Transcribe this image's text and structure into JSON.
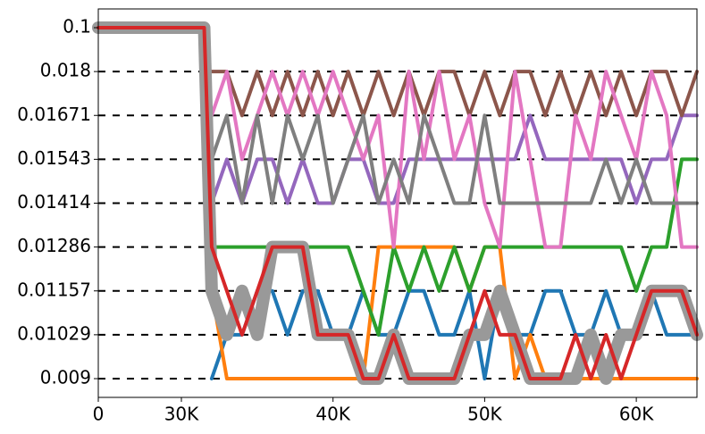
{
  "chart_data": {
    "type": "line",
    "x": [
      0,
      31500,
      32000,
      33000,
      34000,
      35000,
      36000,
      37000,
      38000,
      39000,
      40000,
      41000,
      42000,
      43000,
      44000,
      45000,
      46000,
      47000,
      48000,
      49000,
      50000,
      51000,
      52000,
      53000,
      54000,
      55000,
      56000,
      57000,
      58000,
      59000,
      60000,
      61000,
      62000,
      63000,
      64000
    ],
    "xlim": [
      0,
      64000
    ],
    "xticks": [
      0,
      {
        "value": 30000,
        "label": "30K"
      },
      {
        "value": 40000,
        "label": "40K"
      },
      {
        "value": 50000,
        "label": "50K"
      },
      {
        "value": 60000,
        "label": "60K"
      }
    ],
    "yticks": [
      0.1,
      0.018,
      0.01671,
      0.01543,
      0.01414,
      0.01286,
      0.01157,
      0.01029,
      0.009
    ],
    "hlines": [
      0.018,
      0.01671,
      0.01543,
      0.01414,
      0.01286,
      0.01157,
      0.01029,
      0.009
    ],
    "series": [
      {
        "color": "#1f77b4",
        "width": 4,
        "values": [
          null,
          null,
          0.009,
          0.01029,
          0.01029,
          0.01157,
          0.01157,
          0.01029,
          0.01157,
          0.01157,
          0.01029,
          0.01029,
          0.01157,
          0.01029,
          0.01029,
          0.01157,
          0.01157,
          0.01029,
          0.01029,
          0.01157,
          0.009,
          0.01157,
          0.01029,
          0.01029,
          0.01157,
          0.01157,
          0.01029,
          0.01029,
          0.01157,
          0.01029,
          0.01029,
          0.01157,
          0.01029,
          0.01029,
          0.01029
        ]
      },
      {
        "color": "#ff7f0e",
        "width": 4,
        "values": [
          null,
          null,
          0.01157,
          0.009,
          0.009,
          0.009,
          0.009,
          0.009,
          0.009,
          0.009,
          0.009,
          0.009,
          0.009,
          0.01286,
          0.01286,
          0.01286,
          0.01286,
          0.01286,
          0.01286,
          0.01157,
          0.01286,
          0.01286,
          0.009,
          0.01029,
          0.009,
          0.009,
          0.009,
          0.009,
          0.009,
          0.009,
          0.009,
          0.009,
          0.009,
          0.009,
          0.009
        ]
      },
      {
        "color": "#2ca02c",
        "width": 4,
        "values": [
          null,
          null,
          0.01286,
          0.01286,
          0.01286,
          0.01286,
          0.01286,
          0.01286,
          0.01286,
          0.01286,
          0.01286,
          0.01286,
          0.01157,
          0.01029,
          0.01286,
          0.01157,
          0.01286,
          0.01157,
          0.01286,
          0.01157,
          0.01286,
          0.01286,
          0.01286,
          0.01286,
          0.01286,
          0.01286,
          0.01286,
          0.01286,
          0.01286,
          0.01286,
          0.01157,
          0.01286,
          0.01286,
          0.01543,
          0.01543
        ]
      },
      {
        "color": "#9467bd",
        "width": 4,
        "values": [
          null,
          null,
          0.01414,
          0.01543,
          0.01414,
          0.01543,
          0.01543,
          0.01414,
          0.01543,
          0.01414,
          0.01414,
          0.01543,
          0.01543,
          0.01414,
          0.01414,
          0.01543,
          0.01543,
          0.01543,
          0.01543,
          0.01543,
          0.01543,
          0.01543,
          0.01543,
          0.01671,
          0.01543,
          0.01543,
          0.01543,
          0.01543,
          0.01543,
          0.01543,
          0.01414,
          0.01543,
          0.01543,
          0.01671,
          0.01671
        ]
      },
      {
        "color": "#8c564b",
        "width": 4,
        "values": [
          null,
          null,
          0.018,
          0.018,
          0.01671,
          0.018,
          0.01671,
          0.018,
          0.01671,
          0.018,
          0.01671,
          0.018,
          0.01671,
          0.018,
          0.01671,
          0.018,
          0.01671,
          0.018,
          0.018,
          0.01671,
          0.018,
          0.01671,
          0.018,
          0.018,
          0.01671,
          0.018,
          0.01671,
          0.018,
          0.01671,
          0.018,
          0.01671,
          0.018,
          0.018,
          0.01671,
          0.018
        ]
      },
      {
        "color": "#e377c2",
        "width": 4,
        "values": [
          null,
          null,
          0.01671,
          0.018,
          0.01543,
          0.01671,
          0.018,
          0.01671,
          0.018,
          0.01671,
          0.018,
          0.01671,
          0.01543,
          0.01671,
          0.01286,
          0.018,
          0.01543,
          0.018,
          0.01543,
          0.01671,
          0.01414,
          0.01286,
          0.018,
          0.01543,
          0.01286,
          0.01286,
          0.01671,
          0.01543,
          0.018,
          0.01671,
          0.01543,
          0.018,
          0.01671,
          0.01286,
          0.01286
        ]
      },
      {
        "color": "#7f7f7f",
        "width": 4,
        "values": [
          null,
          null,
          0.01543,
          0.01671,
          0.01414,
          0.01671,
          0.01414,
          0.01671,
          0.01543,
          0.01671,
          0.01414,
          0.01543,
          0.01671,
          0.01414,
          0.01543,
          0.01414,
          0.01671,
          0.01543,
          0.01414,
          0.01414,
          0.01671,
          0.01414,
          0.01414,
          0.01414,
          0.01414,
          0.01414,
          0.01414,
          0.01414,
          0.01543,
          0.01414,
          0.01543,
          0.01414,
          0.01414,
          0.01414,
          0.01414
        ]
      },
      {
        "color": "#999999",
        "width": 14,
        "values": [
          0.1,
          0.1,
          0.01157,
          0.01029,
          0.01157,
          0.01029,
          0.01286,
          0.01286,
          0.01286,
          0.01029,
          0.01029,
          0.01029,
          0.009,
          0.009,
          0.01029,
          0.009,
          0.009,
          0.009,
          0.009,
          0.01029,
          0.01029,
          0.01157,
          0.01029,
          0.009,
          0.009,
          0.009,
          0.009,
          0.01029,
          0.009,
          0.01029,
          0.01029,
          0.01157,
          0.01157,
          0.01157,
          0.01029
        ]
      },
      {
        "color": "#d62728",
        "width": 4,
        "values": [
          0.1,
          0.1,
          0.01286,
          0.01157,
          0.01029,
          0.01157,
          0.01286,
          0.01286,
          0.01286,
          0.01029,
          0.01029,
          0.01029,
          0.009,
          0.009,
          0.01029,
          0.009,
          0.009,
          0.009,
          0.009,
          0.01029,
          0.01157,
          0.01029,
          0.01029,
          0.009,
          0.009,
          0.009,
          0.01029,
          0.009,
          0.01029,
          0.009,
          0.01029,
          0.01157,
          0.01157,
          0.01157,
          0.01029
        ]
      }
    ]
  }
}
